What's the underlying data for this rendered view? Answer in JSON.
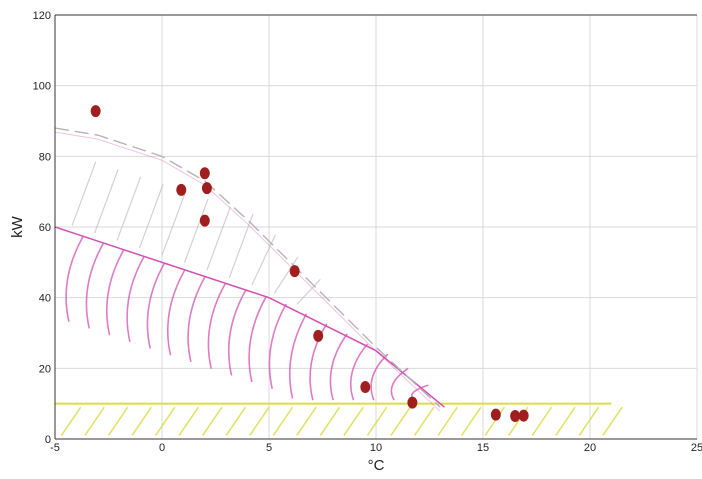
{
  "chart_data": {
    "type": "scatter",
    "title": "",
    "xlabel": "°C",
    "ylabel": "kW",
    "xlim": [
      -5,
      25
    ],
    "ylim": [
      0,
      120
    ],
    "xticks": [
      -5,
      0,
      5,
      10,
      15,
      20,
      25
    ],
    "yticks": [
      0,
      20,
      40,
      60,
      80,
      100,
      120
    ],
    "grid": true,
    "colors": {
      "points": "#a01e1e",
      "grid": "#d9d9d9",
      "pink_hatch": "#d24fb4",
      "grey_hatch": "#b4b4b4",
      "yellow_hatch": "#dcdc46"
    },
    "series": [
      {
        "x": [
          -3.1,
          0.9,
          2.0,
          2.1,
          2.0,
          6.2,
          7.3,
          9.5,
          11.7,
          15.6,
          16.5,
          16.9
        ],
        "y": [
          92.8,
          70.5,
          75.2,
          71.0,
          61.8,
          47.5,
          29.2,
          14.7,
          10.3,
          6.9,
          6.5,
          6.6
        ]
      }
    ],
    "regions": [
      {
        "shape": "upper-envelope",
        "x": [
          -5,
          -3,
          0,
          2,
          4,
          7,
          10,
          13
        ],
        "y": [
          88,
          86,
          80,
          73,
          62,
          44,
          26,
          9
        ]
      },
      {
        "shape": "pink-band",
        "x": [
          -5,
          5,
          10,
          13.2
        ],
        "y": [
          60,
          40,
          25,
          9
        ]
      },
      {
        "shape": "yellow-band",
        "x": [
          -5,
          21
        ],
        "y": [
          0,
          10
        ]
      }
    ]
  }
}
